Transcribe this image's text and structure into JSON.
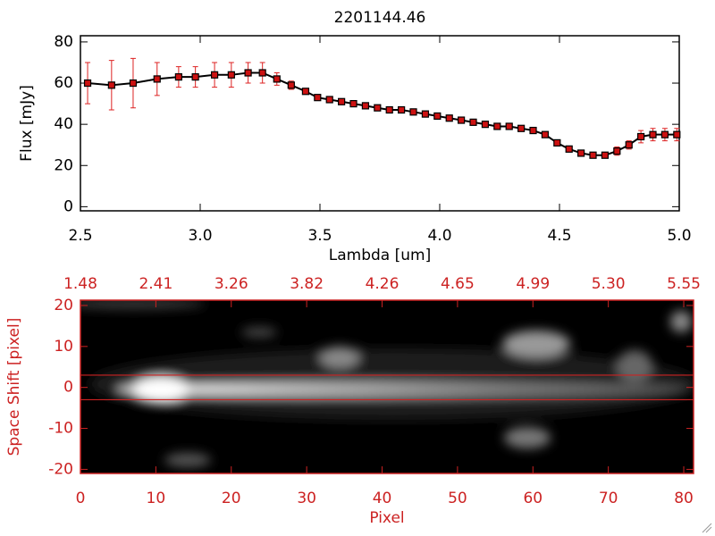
{
  "chart_data": [
    {
      "type": "line",
      "title": "2201144.46",
      "xlabel": "Lambda [um]",
      "ylabel": "Flux [mJy]",
      "x": [
        2.53,
        2.63,
        2.72,
        2.82,
        2.91,
        2.98,
        3.06,
        3.13,
        3.2,
        3.26,
        3.32,
        3.38,
        3.44,
        3.49,
        3.54,
        3.59,
        3.64,
        3.69,
        3.74,
        3.79,
        3.84,
        3.89,
        3.94,
        3.99,
        4.04,
        4.09,
        4.14,
        4.19,
        4.24,
        4.29,
        4.34,
        4.39,
        4.44,
        4.49,
        4.54,
        4.59,
        4.64,
        4.69,
        4.74,
        4.79,
        4.84,
        4.89,
        4.94,
        4.99
      ],
      "values": [
        60,
        59,
        60,
        62,
        63,
        63,
        64,
        64,
        65,
        65,
        62,
        59,
        56,
        53,
        52,
        51,
        50,
        49,
        48,
        47,
        47,
        46,
        45,
        44,
        43,
        42,
        41,
        40,
        39,
        39,
        38,
        37,
        35,
        31,
        28,
        26,
        25,
        25,
        27,
        30,
        34,
        35,
        35,
        35
      ],
      "errors": [
        10,
        12,
        12,
        8,
        5,
        5,
        6,
        6,
        5,
        5,
        3,
        2,
        1,
        1,
        1,
        1,
        1,
        1,
        1,
        1,
        1,
        1,
        1,
        1,
        1,
        1,
        1,
        1,
        1,
        1,
        1,
        1,
        1,
        1,
        1,
        1,
        1,
        1,
        2,
        2,
        3,
        3,
        3,
        3
      ],
      "line_color": "#000000",
      "marker_color": "#cc1111",
      "error_color": "#dd2222",
      "axis_color": "#000000",
      "xlim": [
        2.5,
        5.0
      ],
      "ylim": [
        -2,
        83
      ],
      "xticks": [
        2.5,
        {
          "value": 3,
          "label": "3.0"
        },
        3.5,
        {
          "value": 4,
          "label": "4.0"
        },
        4.5,
        {
          "value": 5,
          "label": "5.0"
        }
      ],
      "yticks": [
        0,
        20,
        40,
        60,
        80
      ]
    },
    {
      "type": "image",
      "xlabel": "Pixel",
      "ylabel": "Space Shift [pixel]",
      "axis_color": "#cc2222",
      "xlim": [
        0,
        81.3
      ],
      "ylim": [
        -21,
        21.3
      ],
      "xticks": [
        0,
        10,
        20,
        30,
        40,
        50,
        60,
        70,
        80
      ],
      "yticks": [
        -20,
        -10,
        0,
        10,
        20
      ],
      "x2ticks": [
        {
          "value": 0,
          "label": "1.48"
        },
        {
          "value": 10,
          "label": "2.41"
        },
        {
          "value": 20,
          "label": "3.26"
        },
        {
          "value": 30,
          "label": "3.82"
        },
        {
          "value": 40,
          "label": "4.26"
        },
        {
          "value": 50,
          "label": "4.65"
        },
        {
          "value": 60,
          "label": "4.99"
        },
        {
          "value": 70,
          "label": "5.30"
        },
        {
          "value": 80,
          "label": "5.55"
        }
      ],
      "hlines": [
        3,
        -3
      ],
      "hline_color": "#cc2222"
    }
  ]
}
